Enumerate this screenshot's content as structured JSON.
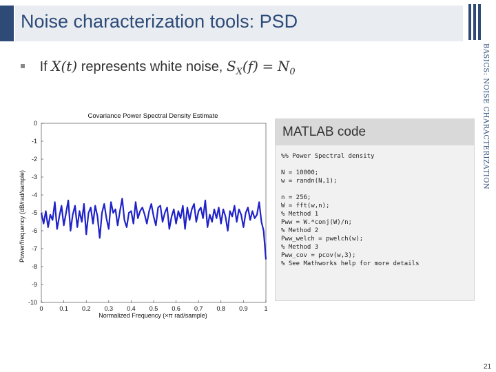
{
  "slide": {
    "title": "Noise characterization tools: PSD",
    "side_label": "BASICS: NOISE CHARACTERIZATION",
    "page_number": "21",
    "bullet": {
      "prefix": "If",
      "x_of_t": "X(t)",
      "middle": "represents white noise,",
      "psd_symbol": "S",
      "psd_subscript": "X",
      "psd_arg": "(f)",
      "equals": "=",
      "n_symbol": "N",
      "n_subscript": "0"
    }
  },
  "matlab": {
    "header": "MATLAB code",
    "code": [
      "%% Power Spectral density",
      "",
      "N = 10000;",
      "w = randn(N,1);",
      "",
      "n = 256;",
      "W = fft(w,n);",
      "% Method 1",
      "Pww = W.*conj(W)/n;",
      "% Method 2",
      "Pww_welch = pwelch(w);",
      "% Method 3",
      "Pww_cov = pcov(w,3);",
      "% See Mathworks help for more details"
    ]
  },
  "chart_data": {
    "type": "line",
    "title": "Covariance Power Spectral Density Estimate",
    "xlabel": "Normalized Frequency (×π rad/sample)",
    "ylabel": "Power/frequency (dB/rad/sample)",
    "xlim": [
      0,
      1
    ],
    "ylim": [
      -10,
      0
    ],
    "x_ticks": [
      "0",
      "0.1",
      "0.2",
      "0.3",
      "0.4",
      "0.5",
      "0.6",
      "0.7",
      "0.8",
      "0.9",
      "1"
    ],
    "y_ticks": [
      "0",
      "-1",
      "-2",
      "-3",
      "-4",
      "-5",
      "-6",
      "-7",
      "-8",
      "-9",
      "-10"
    ],
    "grid": false,
    "line_color": "#1f22c9",
    "series": [
      {
        "x": [
          0.0,
          0.01,
          0.02,
          0.03,
          0.04,
          0.05,
          0.06,
          0.07,
          0.08,
          0.09,
          0.1,
          0.11,
          0.12,
          0.13,
          0.14,
          0.15,
          0.16,
          0.17,
          0.18,
          0.19,
          0.2,
          0.21,
          0.22,
          0.23,
          0.24,
          0.25,
          0.26,
          0.27,
          0.28,
          0.29,
          0.3,
          0.31,
          0.32,
          0.33,
          0.34,
          0.35,
          0.36,
          0.37,
          0.38,
          0.39,
          0.4,
          0.41,
          0.42,
          0.43,
          0.44,
          0.45,
          0.46,
          0.47,
          0.48,
          0.49,
          0.5,
          0.51,
          0.52,
          0.53,
          0.54,
          0.55,
          0.56,
          0.57,
          0.58,
          0.59,
          0.6,
          0.61,
          0.62,
          0.63,
          0.64,
          0.65,
          0.66,
          0.67,
          0.68,
          0.69,
          0.7,
          0.71,
          0.72,
          0.73,
          0.74,
          0.75,
          0.76,
          0.77,
          0.78,
          0.79,
          0.8,
          0.81,
          0.82,
          0.83,
          0.84,
          0.85,
          0.86,
          0.87,
          0.88,
          0.89,
          0.9,
          0.91,
          0.92,
          0.93,
          0.94,
          0.95,
          0.96,
          0.97,
          0.98,
          0.99,
          1.0
        ],
        "values": [
          -5.0,
          -5.6,
          -4.9,
          -5.8,
          -5.1,
          -5.4,
          -4.4,
          -5.9,
          -5.2,
          -4.6,
          -5.7,
          -5.0,
          -4.3,
          -6.0,
          -5.1,
          -4.6,
          -5.8,
          -4.9,
          -5.5,
          -4.5,
          -6.2,
          -5.0,
          -4.7,
          -5.6,
          -4.6,
          -5.2,
          -6.4,
          -5.0,
          -4.5,
          -5.3,
          -5.9,
          -4.4,
          -5.0,
          -4.8,
          -5.7,
          -4.9,
          -4.2,
          -5.4,
          -5.8,
          -5.0,
          -4.9,
          -5.6,
          -4.4,
          -5.3,
          -4.9,
          -4.7,
          -5.1,
          -5.6,
          -4.9,
          -4.5,
          -5.2,
          -5.7,
          -4.7,
          -4.6,
          -5.5,
          -5.0,
          -4.7,
          -5.9,
          -5.2,
          -4.8,
          -5.6,
          -4.9,
          -5.3,
          -4.6,
          -5.9,
          -4.7,
          -5.4,
          -4.8,
          -4.5,
          -5.5,
          -4.9,
          -4.7,
          -5.3,
          -4.3,
          -5.8,
          -5.1,
          -5.5,
          -4.8,
          -5.3,
          -4.7,
          -5.6,
          -4.8,
          -5.2,
          -6.0,
          -4.9,
          -5.2,
          -4.6,
          -5.5,
          -4.8,
          -5.1,
          -5.8,
          -5.0,
          -4.7,
          -5.4,
          -4.9,
          -5.3,
          -5.1,
          -4.4,
          -5.5,
          -6.0,
          -7.6
        ]
      }
    ]
  }
}
